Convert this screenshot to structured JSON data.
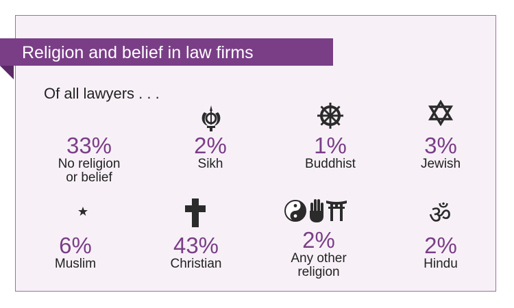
{
  "title": "Religion and belief in law firms",
  "subtitle": "Of all lawyers . . .",
  "stats": [
    {
      "value": "33%",
      "label_line1": "No religion",
      "label_line2": "or belief",
      "icon": "none"
    },
    {
      "value": "2%",
      "label_line1": "Sikh",
      "icon": "khanda-icon"
    },
    {
      "value": "1%",
      "label_line1": "Buddhist",
      "icon": "dharma-wheel-icon"
    },
    {
      "value": "3%",
      "label_line1": "Jewish",
      "icon": "star-of-david-icon"
    },
    {
      "value": "6%",
      "label_line1": "Muslim",
      "icon": "crescent-star-icon"
    },
    {
      "value": "43%",
      "label_line1": "Christian",
      "icon": "cross-icon"
    },
    {
      "value": "2%",
      "label_line1": "Any other",
      "label_line2": "religion",
      "icon": "yin-yang-hamsa-torii-icons"
    },
    {
      "value": "2%",
      "label_line1": "Hindu",
      "icon": "om-icon"
    }
  ],
  "colors": {
    "accent": "#7a3e87",
    "icon": "#2b2b2b",
    "card_bg": "#f7f1f7",
    "border": "#9b6fa3"
  }
}
